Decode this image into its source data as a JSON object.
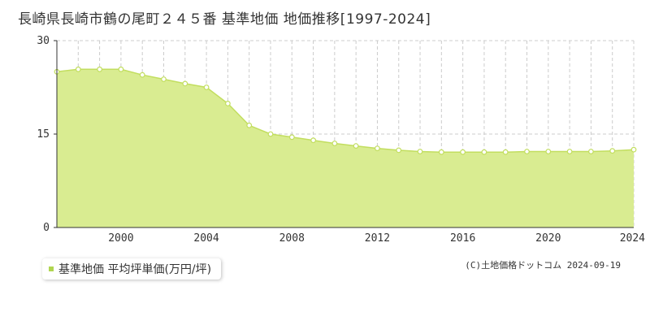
{
  "title": "長崎県長崎市鶴の尾町２４５番 基準地価 地価推移[1997-2024]",
  "legend_label": "基準地価 平均坪単価(万円/坪)",
  "copyright": "(C)土地価格ドットコム 2024-09-19",
  "colors": {
    "fill": "#d9ec91",
    "line": "#c2de5f",
    "point_fill": "#ffffff",
    "legend": "#b0d550"
  },
  "chart_data": {
    "type": "area",
    "title": "長崎県長崎市鶴の尾町２４５番 基準地価 地価推移[1997-2024]",
    "xlabel": "",
    "ylabel": "",
    "xlim": [
      1997,
      2024
    ],
    "ylim": [
      0,
      30
    ],
    "x_ticks": [
      "2000",
      "2004",
      "2008",
      "2012",
      "2016",
      "2020",
      "2024"
    ],
    "y_ticks": [
      "0",
      "15",
      "30"
    ],
    "grid": true,
    "legend": "bottom-left",
    "series": [
      {
        "name": "基準地価 平均坪単価(万円/坪)",
        "x": [
          1997,
          1998,
          1999,
          2000,
          2001,
          2002,
          2003,
          2004,
          2005,
          2006,
          2007,
          2008,
          2009,
          2010,
          2011,
          2012,
          2013,
          2014,
          2015,
          2016,
          2017,
          2018,
          2019,
          2020,
          2021,
          2022,
          2023,
          2024
        ],
        "values": [
          25.0,
          25.4,
          25.4,
          25.4,
          24.5,
          23.8,
          23.1,
          22.5,
          19.9,
          16.4,
          15.0,
          14.5,
          14.0,
          13.5,
          13.1,
          12.7,
          12.4,
          12.2,
          12.1,
          12.1,
          12.1,
          12.1,
          12.2,
          12.2,
          12.2,
          12.2,
          12.3,
          12.5
        ]
      }
    ]
  }
}
